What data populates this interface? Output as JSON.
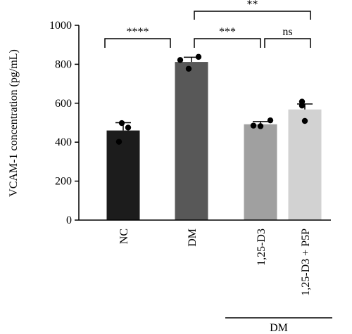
{
  "chart_data": {
    "type": "bar",
    "ylabel": "VCAM-1 concentration (pg/mL)",
    "ylim": [
      0,
      1000
    ],
    "yticks": [
      0,
      200,
      400,
      600,
      800,
      1000
    ],
    "categories": [
      "NC",
      "DM",
      "1,25-D3",
      "1,25-D3 + P5P"
    ],
    "values": [
      460,
      812,
      492,
      568
    ],
    "errors": [
      40,
      24,
      14,
      28
    ],
    "bar_colors": [
      "#1c1c1c",
      "#585858",
      "#a0a0a0",
      "#d2d2d2"
    ],
    "points": [
      [
        498,
        402,
        475
      ],
      [
        838,
        777,
        822
      ],
      [
        512,
        485,
        482
      ],
      [
        608,
        588,
        509
      ]
    ],
    "significance": [
      {
        "from": 0,
        "to": 1,
        "label": "****"
      },
      {
        "from": 1,
        "to": 2,
        "label": "***"
      },
      {
        "from": 2,
        "to": 3,
        "label": "ns"
      },
      {
        "from": 1,
        "to": 3,
        "label": "**"
      }
    ],
    "group_label": {
      "label": "DM",
      "categories": [
        2,
        3
      ]
    }
  }
}
